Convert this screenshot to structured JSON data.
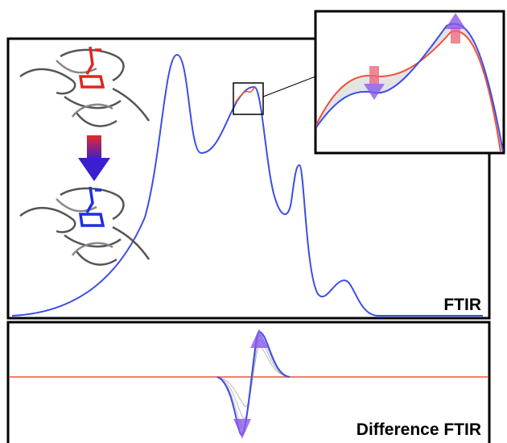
{
  "panels": {
    "ftir_label": "FTIR",
    "difference_label": "Difference FTIR"
  }
}
